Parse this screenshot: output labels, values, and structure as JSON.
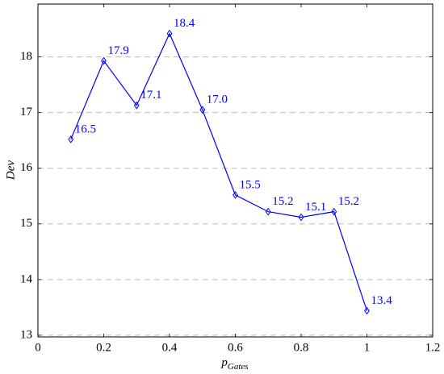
{
  "chart_data": {
    "type": "line",
    "xlabel": "p",
    "xlabel_subscript": "Gates",
    "ylabel": "Dev",
    "x": [
      0.1,
      0.2,
      0.3,
      0.4,
      0.5,
      0.6,
      0.7,
      0.8,
      0.9,
      1.0
    ],
    "series": [
      {
        "color": "#0000ff",
        "values": [
          16.52,
          17.93,
          17.13,
          18.42,
          17.05,
          15.52,
          15.22,
          15.12,
          15.22,
          13.44
        ],
        "value_labels": [
          "16.5",
          "17.9",
          "17.1",
          "18.4",
          "17.0",
          "15.5",
          "15.2",
          "15.1",
          "15.2",
          "13.4"
        ]
      }
    ],
    "xlim": [
      0,
      1.2
    ],
    "ylim": [
      12.97,
      18.95
    ],
    "xticks": [
      0,
      0.2,
      0.4,
      0.6,
      0.8,
      1,
      1.2
    ],
    "yticks": [
      13,
      14,
      15,
      16,
      17,
      18
    ],
    "grid": true
  }
}
